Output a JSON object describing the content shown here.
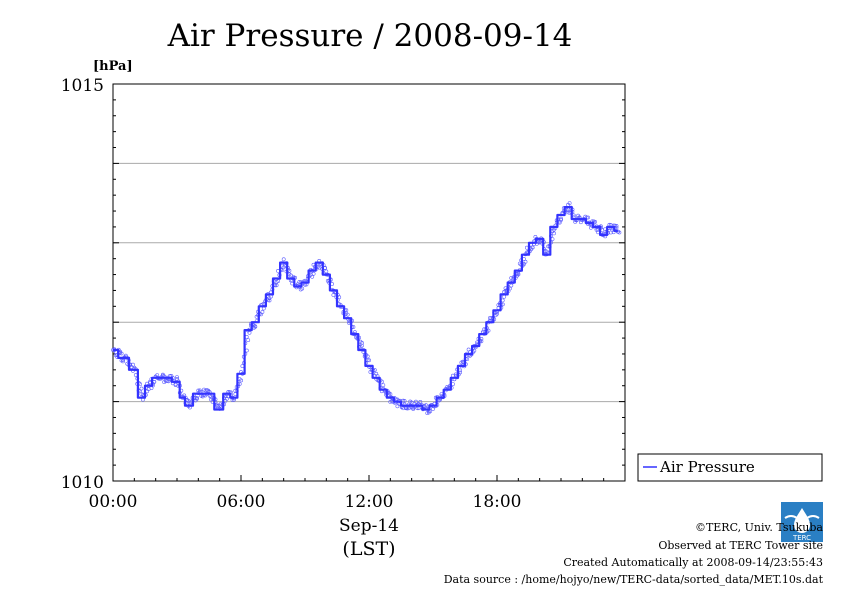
{
  "chart_data": {
    "type": "line",
    "title": "Air Pressure / 2008-09-14",
    "ylabel": "[hPa]",
    "xlabel": "Sep-14",
    "xlabel_sub": "(LST)",
    "ylim": [
      1010,
      1015
    ],
    "xlim": [
      "00:00",
      "24:00"
    ],
    "y_ticks": [
      "1015",
      "1010"
    ],
    "x_ticks": [
      "00:00",
      "06:00",
      "12:00",
      "18:00"
    ],
    "grid": true,
    "legend_position": "right-bottom",
    "series": [
      {
        "name": "Air Pressure",
        "color": "#3333ff",
        "x": [
          "00:00",
          "00:30",
          "01:00",
          "01:20",
          "01:40",
          "02:00",
          "02:30",
          "03:00",
          "03:15",
          "03:30",
          "04:00",
          "04:30",
          "05:00",
          "05:20",
          "05:40",
          "06:00",
          "06:20",
          "06:40",
          "07:00",
          "07:20",
          "07:40",
          "08:00",
          "08:20",
          "08:40",
          "09:00",
          "09:20",
          "09:40",
          "10:00",
          "10:20",
          "10:40",
          "11:00",
          "11:20",
          "11:40",
          "12:00",
          "12:20",
          "12:40",
          "13:00",
          "13:20",
          "13:40",
          "14:00",
          "14:20",
          "14:40",
          "15:00",
          "15:20",
          "15:40",
          "16:00",
          "16:20",
          "16:40",
          "17:00",
          "17:20",
          "17:40",
          "18:00",
          "18:20",
          "18:40",
          "19:00",
          "19:20",
          "19:40",
          "20:00",
          "20:20",
          "20:40",
          "21:00",
          "21:20",
          "21:40",
          "22:00",
          "22:20",
          "22:40",
          "23:00",
          "23:20",
          "23:40"
        ],
        "values": [
          1011.65,
          1011.55,
          1011.4,
          1011.05,
          1011.2,
          1011.3,
          1011.3,
          1011.25,
          1011.05,
          1010.95,
          1011.1,
          1011.1,
          1010.9,
          1011.1,
          1011.05,
          1011.35,
          1011.9,
          1012.0,
          1012.2,
          1012.35,
          1012.55,
          1012.75,
          1012.55,
          1012.45,
          1012.5,
          1012.65,
          1012.75,
          1012.6,
          1012.4,
          1012.2,
          1012.05,
          1011.85,
          1011.65,
          1011.45,
          1011.3,
          1011.15,
          1011.05,
          1011.0,
          1010.95,
          1010.95,
          1010.95,
          1010.9,
          1010.95,
          1011.05,
          1011.15,
          1011.3,
          1011.45,
          1011.6,
          1011.7,
          1011.85,
          1012.0,
          1012.15,
          1012.35,
          1012.5,
          1012.65,
          1012.85,
          1013.0,
          1013.05,
          1012.85,
          1013.2,
          1013.35,
          1013.45,
          1013.3,
          1013.3,
          1013.25,
          1013.2,
          1013.1,
          1013.2,
          1013.15
        ]
      }
    ]
  },
  "credits": {
    "copyright": "©TERC, Univ. Tsukuba",
    "observed": "Observed at TERC Tower site",
    "created": "Created Automatically at 2008-09-14/23:55:43",
    "source": "Data source : /home/hojyo/new/TERC-data/sorted_data/MET.10s.dat",
    "logo_text": "TERC"
  }
}
